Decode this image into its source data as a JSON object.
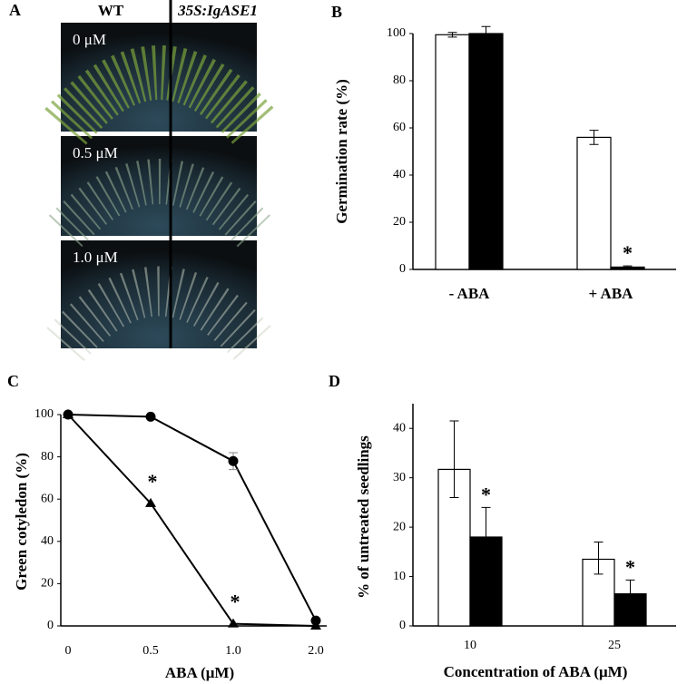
{
  "panel_labels": [
    "A",
    "B",
    "C",
    "D"
  ],
  "photo": {
    "columns": [
      "WT",
      "35S:IgASE1"
    ],
    "rows": [
      "0 μM",
      "0.5 μM",
      "1.0 μM"
    ]
  },
  "chart_data": [
    {
      "type": "bar",
      "ylabel": "Germination rate (%)",
      "categories": [
        "- ABA",
        "+ ABA"
      ],
      "series": [
        {
          "color": "#ffffff",
          "values": [
            99.5,
            56
          ],
          "errors": [
            1,
            3
          ]
        },
        {
          "color": "#000000",
          "values": [
            100,
            1
          ],
          "errors": [
            3,
            0.5
          ]
        }
      ],
      "annotations": [
        "*"
      ],
      "ylim": [
        0,
        100
      ],
      "yticks": [
        0,
        20,
        40,
        60,
        80,
        100
      ]
    },
    {
      "type": "line",
      "xlabel": "ABA (μM)",
      "ylabel": "Green cotyledon (%)",
      "categories": [
        "0",
        "0.5",
        "1.0",
        "2.0"
      ],
      "series": [
        {
          "color": "#000000",
          "marker": "circle",
          "values": [
            100,
            99,
            78,
            2.5
          ],
          "errors": [
            null,
            null,
            4,
            null
          ]
        },
        {
          "color": "#000000",
          "marker": "triangle",
          "values": [
            100,
            58,
            1,
            0
          ],
          "errors": [
            null,
            null,
            null,
            null
          ]
        }
      ],
      "annotations": [
        "*",
        "*"
      ],
      "ylim": [
        0,
        100
      ],
      "yticks": [
        0,
        20,
        40,
        60,
        80,
        100
      ]
    },
    {
      "type": "bar",
      "xlabel": "Concentration of ABA (μM)",
      "ylabel": "% of untreated seedlings",
      "categories": [
        "10",
        "25"
      ],
      "series": [
        {
          "color": "#ffffff",
          "values": [
            31.7,
            13.5
          ],
          "errors_lower": [
            5.7,
            3
          ],
          "errors_upper": [
            9.8,
            3.5
          ]
        },
        {
          "color": "#000000",
          "values": [
            18,
            6.5
          ],
          "errors_lower": [
            6,
            2.8
          ],
          "errors_upper": [
            6,
            2.8
          ]
        }
      ],
      "annotations": [
        "*",
        "*"
      ],
      "ylim": [
        0,
        45
      ],
      "yticks": [
        0,
        10,
        20,
        30,
        40
      ]
    }
  ]
}
